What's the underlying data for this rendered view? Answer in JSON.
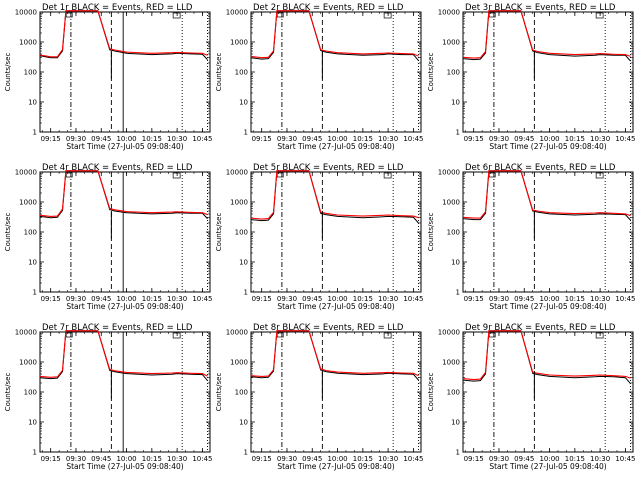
{
  "figure": {
    "xtick_labels": [
      "09:15",
      "09:30",
      "09:45",
      "10:00",
      "10:15",
      "10:30",
      "10:45"
    ],
    "ytick_labels": [
      "10000",
      "1000",
      "100",
      "10",
      "1"
    ],
    "xlabel": "Start Time (27-Jul-05 09:08:40)",
    "ylabel": "Counts/sec",
    "colors": {
      "events": "#000000",
      "lld": "#ff0000",
      "background": "#ffffff"
    }
  },
  "chart_data": [
    {
      "type": "line",
      "title": "Det 1r  BLACK = Events, RED = LLD",
      "xlabel": "Start Time (27-Jul-05 09:08:40)",
      "ylabel": "Counts/sec",
      "x_range": [
        "09:08:40",
        "10:49:30"
      ],
      "ylim": [
        1,
        10000
      ],
      "y_scale": "log",
      "x": [
        "09:08:40",
        "09:15",
        "09:19",
        "09:22",
        "09:24",
        "09:27",
        "09:43",
        "09:50",
        "09:53",
        "10:00",
        "10:15",
        "10:27",
        "10:30",
        "10:38",
        "10:45",
        "10:48"
      ],
      "series": [
        {
          "name": "BLACK = Events",
          "values": [
            350,
            300,
            300,
            500,
            11000,
            11000,
            11000,
            550,
            500,
            420,
            380,
            400,
            420,
            400,
            390,
            260
          ]
        },
        {
          "name": "RED = LLD",
          "values": [
            370,
            320,
            320,
            560,
            11000,
            11000,
            11000,
            600,
            540,
            460,
            420,
            440,
            450,
            430,
            420,
            360
          ]
        }
      ],
      "vertical_lines": [
        {
          "style": "dash-dot",
          "time": "09:27"
        },
        {
          "style": "dashed",
          "time": "09:51"
        },
        {
          "style": "solid",
          "time": "09:58"
        },
        {
          "style": "dotted",
          "time": "10:33"
        },
        {
          "style": "dotted",
          "time": "10:48"
        }
      ]
    },
    {
      "type": "line",
      "title": "Det 2r  BLACK = Events, RED = LLD",
      "xlabel": "Start Time (27-Jul-05 09:08:40)",
      "ylabel": "Counts/sec",
      "x_range": [
        "09:08:40",
        "10:49:30"
      ],
      "ylim": [
        1,
        10000
      ],
      "y_scale": "log",
      "x": [
        "09:08:40",
        "09:15",
        "09:19",
        "09:22",
        "09:24",
        "09:27",
        "09:43",
        "09:50",
        "09:53",
        "10:00",
        "10:15",
        "10:27",
        "10:30",
        "10:38",
        "10:45",
        "10:48"
      ],
      "series": [
        {
          "name": "BLACK = Events",
          "values": [
            300,
            270,
            280,
            450,
            11000,
            11000,
            11000,
            520,
            460,
            400,
            360,
            380,
            400,
            380,
            380,
            240
          ]
        },
        {
          "name": "RED = LLD",
          "values": [
            330,
            300,
            310,
            500,
            11000,
            11000,
            11000,
            560,
            500,
            440,
            400,
            420,
            430,
            410,
            400,
            340
          ]
        }
      ],
      "vertical_lines": [
        {
          "style": "dash-dot",
          "time": "09:27"
        },
        {
          "style": "dashed",
          "time": "09:51"
        },
        {
          "style": "dotted",
          "time": "10:33"
        },
        {
          "style": "dotted",
          "time": "10:48"
        }
      ]
    },
    {
      "type": "line",
      "title": "Det 3r  BLACK = Events, RED = LLD",
      "xlabel": "Start Time (27-Jul-05 09:08:40)",
      "ylabel": "Counts/sec",
      "x_range": [
        "09:08:40",
        "10:49:30"
      ],
      "ylim": [
        1,
        10000
      ],
      "y_scale": "log",
      "x": [
        "09:08:40",
        "09:15",
        "09:19",
        "09:22",
        "09:24",
        "09:27",
        "09:43",
        "09:50",
        "09:53",
        "10:00",
        "10:15",
        "10:27",
        "10:30",
        "10:38",
        "10:45",
        "10:48"
      ],
      "series": [
        {
          "name": "BLACK = Events",
          "values": [
            280,
            260,
            270,
            430,
            11000,
            11000,
            11000,
            500,
            440,
            380,
            340,
            360,
            380,
            360,
            360,
            230
          ]
        },
        {
          "name": "RED = LLD",
          "values": [
            310,
            290,
            300,
            480,
            11000,
            11000,
            11000,
            540,
            480,
            420,
            380,
            400,
            410,
            390,
            380,
            330
          ]
        }
      ],
      "vertical_lines": [
        {
          "style": "dash-dot",
          "time": "09:27"
        },
        {
          "style": "dashed",
          "time": "09:51"
        },
        {
          "style": "dotted",
          "time": "10:33"
        },
        {
          "style": "dotted",
          "time": "10:48"
        }
      ]
    },
    {
      "type": "line",
      "title": "Det 4r  BLACK = Events, RED = LLD",
      "xlabel": "Start Time (27-Jul-05 09:08:40)",
      "ylabel": "Counts/sec",
      "x_range": [
        "09:08:40",
        "10:49:30"
      ],
      "ylim": [
        1,
        10000
      ],
      "y_scale": "log",
      "x": [
        "09:08:40",
        "09:15",
        "09:19",
        "09:22",
        "09:24",
        "09:27",
        "09:43",
        "09:50",
        "09:53",
        "10:00",
        "10:15",
        "10:27",
        "10:30",
        "10:38",
        "10:45",
        "10:48"
      ],
      "series": [
        {
          "name": "BLACK = Events",
          "values": [
            330,
            300,
            310,
            520,
            11000,
            11000,
            11000,
            560,
            500,
            440,
            400,
            420,
            440,
            420,
            420,
            280
          ]
        },
        {
          "name": "RED = LLD",
          "values": [
            360,
            330,
            340,
            580,
            11000,
            11000,
            11000,
            610,
            550,
            480,
            440,
            460,
            470,
            450,
            440,
            380
          ]
        }
      ],
      "vertical_lines": [
        {
          "style": "dash-dot",
          "time": "09:27"
        },
        {
          "style": "dashed",
          "time": "09:51"
        },
        {
          "style": "solid",
          "time": "09:58"
        },
        {
          "style": "dotted",
          "time": "10:33"
        },
        {
          "style": "dotted",
          "time": "10:48"
        }
      ]
    },
    {
      "type": "line",
      "title": "Det 5r  BLACK = Events, RED = LLD",
      "xlabel": "Start Time (27-Jul-05 09:08:40)",
      "ylabel": "Counts/sec",
      "x_range": [
        "09:08:40",
        "10:49:30"
      ],
      "ylim": [
        1,
        10000
      ],
      "y_scale": "log",
      "x": [
        "09:08:40",
        "09:15",
        "09:19",
        "09:22",
        "09:24",
        "09:27",
        "09:43",
        "09:50",
        "09:53",
        "10:00",
        "10:15",
        "10:27",
        "10:30",
        "10:38",
        "10:45",
        "10:48"
      ],
      "series": [
        {
          "name": "BLACK = Events",
          "values": [
            260,
            240,
            250,
            400,
            11000,
            11000,
            11000,
            420,
            380,
            330,
            300,
            320,
            330,
            320,
            310,
            200
          ]
        },
        {
          "name": "RED = LLD",
          "values": [
            290,
            270,
            280,
            450,
            11000,
            11000,
            11000,
            460,
            420,
            370,
            340,
            360,
            370,
            350,
            340,
            300
          ]
        }
      ],
      "vertical_lines": [
        {
          "style": "dash-dot",
          "time": "09:27"
        },
        {
          "style": "dashed",
          "time": "09:51"
        },
        {
          "style": "dotted",
          "time": "10:33"
        },
        {
          "style": "dotted",
          "time": "10:48"
        }
      ]
    },
    {
      "type": "line",
      "title": "Det 6r  BLACK = Events, RED = LLD",
      "xlabel": "Start Time (27-Jul-05 09:08:40)",
      "ylabel": "Counts/sec",
      "x_range": [
        "09:08:40",
        "10:49:30"
      ],
      "ylim": [
        1,
        10000
      ],
      "y_scale": "log",
      "x": [
        "09:08:40",
        "09:15",
        "09:19",
        "09:22",
        "09:24",
        "09:27",
        "09:43",
        "09:50",
        "09:53",
        "10:00",
        "10:15",
        "10:27",
        "10:30",
        "10:38",
        "10:45",
        "10:48"
      ],
      "series": [
        {
          "name": "BLACK = Events",
          "values": [
            280,
            260,
            260,
            420,
            11000,
            11000,
            11000,
            500,
            460,
            400,
            370,
            390,
            400,
            390,
            380,
            250
          ]
        },
        {
          "name": "RED = LLD",
          "values": [
            310,
            290,
            290,
            470,
            11000,
            11000,
            11000,
            540,
            500,
            440,
            410,
            430,
            440,
            420,
            400,
            350
          ]
        }
      ],
      "vertical_lines": [
        {
          "style": "dash-dot",
          "time": "09:27"
        },
        {
          "style": "dashed",
          "time": "09:51"
        },
        {
          "style": "dotted",
          "time": "10:33"
        },
        {
          "style": "dotted",
          "time": "10:48"
        }
      ]
    },
    {
      "type": "line",
      "title": "Det 7r  BLACK = Events, RED = LLD",
      "xlabel": "Start Time (27-Jul-05 09:08:40)",
      "ylabel": "Counts/sec",
      "x_range": [
        "09:08:40",
        "10:49:30"
      ],
      "ylim": [
        1,
        10000
      ],
      "y_scale": "log",
      "x": [
        "09:08:40",
        "09:15",
        "09:19",
        "09:22",
        "09:24",
        "09:27",
        "09:43",
        "09:50",
        "09:53",
        "10:00",
        "10:15",
        "10:27",
        "10:30",
        "10:38",
        "10:45",
        "10:48"
      ],
      "series": [
        {
          "name": "BLACK = Events",
          "values": [
            300,
            280,
            290,
            480,
            11000,
            11000,
            11000,
            520,
            470,
            410,
            370,
            390,
            410,
            390,
            380,
            240
          ]
        },
        {
          "name": "RED = LLD",
          "values": [
            330,
            310,
            320,
            530,
            11000,
            11000,
            11000,
            570,
            510,
            450,
            410,
            430,
            440,
            420,
            410,
            340
          ]
        }
      ],
      "vertical_lines": [
        {
          "style": "dash-dot",
          "time": "09:27"
        },
        {
          "style": "dashed",
          "time": "09:51"
        },
        {
          "style": "solid",
          "time": "09:58"
        },
        {
          "style": "dotted",
          "time": "10:33"
        },
        {
          "style": "dotted",
          "time": "10:48"
        }
      ]
    },
    {
      "type": "line",
      "title": "Det 8r  BLACK = Events, RED = LLD",
      "xlabel": "Start Time (27-Jul-05 09:08:40)",
      "ylabel": "Counts/sec",
      "x_range": [
        "09:08:40",
        "10:49:30"
      ],
      "ylim": [
        1,
        10000
      ],
      "y_scale": "log",
      "x": [
        "09:08:40",
        "09:15",
        "09:19",
        "09:22",
        "09:24",
        "09:27",
        "09:43",
        "09:50",
        "09:53",
        "10:00",
        "10:15",
        "10:27",
        "10:30",
        "10:38",
        "10:45",
        "10:48"
      ],
      "series": [
        {
          "name": "BLACK = Events",
          "values": [
            320,
            300,
            310,
            500,
            11000,
            11000,
            11000,
            540,
            480,
            420,
            380,
            400,
            420,
            400,
            390,
            250
          ]
        },
        {
          "name": "RED = LLD",
          "values": [
            350,
            330,
            340,
            550,
            11000,
            11000,
            11000,
            590,
            520,
            460,
            420,
            440,
            450,
            430,
            420,
            350
          ]
        }
      ],
      "vertical_lines": [
        {
          "style": "dash-dot",
          "time": "09:27"
        },
        {
          "style": "dashed",
          "time": "09:51"
        },
        {
          "style": "dotted",
          "time": "10:33"
        },
        {
          "style": "dotted",
          "time": "10:48"
        }
      ]
    },
    {
      "type": "line",
      "title": "Det 9r  BLACK = Events, RED = LLD",
      "xlabel": "Start Time (27-Jul-05 09:08:40)",
      "ylabel": "Counts/sec",
      "x_range": [
        "09:08:40",
        "10:49:30"
      ],
      "ylim": [
        1,
        10000
      ],
      "y_scale": "log",
      "x": [
        "09:08:40",
        "09:15",
        "09:19",
        "09:22",
        "09:24",
        "09:27",
        "09:43",
        "09:50",
        "09:53",
        "10:00",
        "10:15",
        "10:27",
        "10:30",
        "10:38",
        "10:45",
        "10:48"
      ],
      "series": [
        {
          "name": "BLACK = Events",
          "values": [
            250,
            230,
            240,
            400,
            11000,
            11000,
            11000,
            420,
            380,
            330,
            300,
            320,
            330,
            320,
            300,
            190
          ]
        },
        {
          "name": "RED = LLD",
          "values": [
            280,
            260,
            270,
            450,
            11000,
            11000,
            11000,
            460,
            420,
            370,
            340,
            360,
            370,
            350,
            330,
            290
          ]
        }
      ],
      "vertical_lines": [
        {
          "style": "dash-dot",
          "time": "09:27"
        },
        {
          "style": "dashed",
          "time": "09:51"
        },
        {
          "style": "dotted",
          "time": "10:33"
        },
        {
          "style": "dotted",
          "time": "10:48"
        }
      ]
    }
  ]
}
